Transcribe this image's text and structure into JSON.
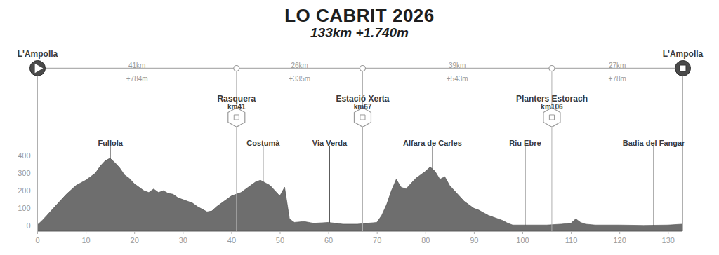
{
  "chart_data": {
    "type": "area",
    "title": "LO CABRIT 2026",
    "subtitle": "133km +1.740m",
    "color": "#6e6e6e",
    "x": [
      0,
      1,
      2,
      3,
      4,
      5,
      6,
      7,
      8,
      9,
      10,
      11,
      12,
      13,
      14,
      15,
      16,
      17,
      18,
      19,
      20,
      21,
      22,
      23,
      24,
      25,
      26,
      27,
      28,
      29,
      30,
      31,
      32,
      33,
      34,
      35,
      36,
      37,
      38,
      39,
      40,
      41,
      42,
      43,
      44,
      45,
      46,
      47,
      48,
      49,
      50,
      51,
      52,
      53,
      55,
      57,
      60,
      63,
      66,
      68,
      70,
      71,
      72,
      73,
      74,
      75,
      76,
      77,
      78,
      79,
      80,
      81,
      82,
      83,
      84,
      85,
      86,
      87,
      88,
      89,
      90,
      91,
      92,
      93,
      94,
      95,
      96,
      97,
      98,
      100,
      105,
      108,
      110,
      111,
      112,
      113,
      115,
      120,
      125,
      130,
      133
    ],
    "values": [
      5,
      30,
      60,
      90,
      120,
      150,
      180,
      205,
      230,
      245,
      260,
      280,
      300,
      340,
      370,
      385,
      360,
      330,
      290,
      270,
      240,
      220,
      200,
      190,
      210,
      190,
      200,
      185,
      180,
      160,
      150,
      140,
      130,
      110,
      95,
      80,
      85,
      110,
      130,
      150,
      170,
      180,
      190,
      210,
      230,
      250,
      260,
      245,
      230,
      200,
      170,
      220,
      40,
      20,
      25,
      15,
      20,
      10,
      10,
      15,
      20,
      60,
      120,
      200,
      265,
      220,
      210,
      240,
      270,
      290,
      310,
      335,
      310,
      265,
      280,
      230,
      200,
      170,
      140,
      120,
      100,
      90,
      75,
      60,
      50,
      40,
      30,
      15,
      5,
      5,
      5,
      10,
      15,
      40,
      20,
      10,
      5,
      5,
      3,
      5,
      10
    ],
    "xlim": [
      0,
      133
    ],
    "ylim": [
      -30,
      400
    ],
    "xticks": [
      0,
      10,
      20,
      30,
      40,
      50,
      60,
      70,
      80,
      90,
      100,
      110,
      120,
      130
    ],
    "yticks": [
      0,
      100,
      200,
      300,
      400
    ],
    "annotations": [
      {
        "label": "Fullola",
        "x": 15
      },
      {
        "label": "Costumà",
        "x": 46.5
      },
      {
        "label": "Via Verda",
        "x": 60.2
      },
      {
        "label": "Alfara de Carles",
        "x": 81.4
      },
      {
        "label": "Riu Ebre",
        "x": 100.5
      },
      {
        "label": "Badia del Fangar",
        "x": 127
      }
    ],
    "start": {
      "name": "L'Ampolla",
      "km": 0
    },
    "finish": {
      "name": "L'Ampolla",
      "km": 133
    },
    "checkpoints": [
      {
        "name": "Rasquera",
        "km": 41,
        "label": "km41"
      },
      {
        "name": "Estació Xerta",
        "km": 67,
        "label": "km67"
      },
      {
        "name": "Planters Estorach",
        "km": 106,
        "label": "km106"
      }
    ],
    "segments": [
      {
        "distance": "41km",
        "gain": "+784m"
      },
      {
        "distance": "26km",
        "gain": "+335m"
      },
      {
        "distance": "39km",
        "gain": "+543m"
      },
      {
        "distance": "27km",
        "gain": "+78m"
      }
    ]
  }
}
